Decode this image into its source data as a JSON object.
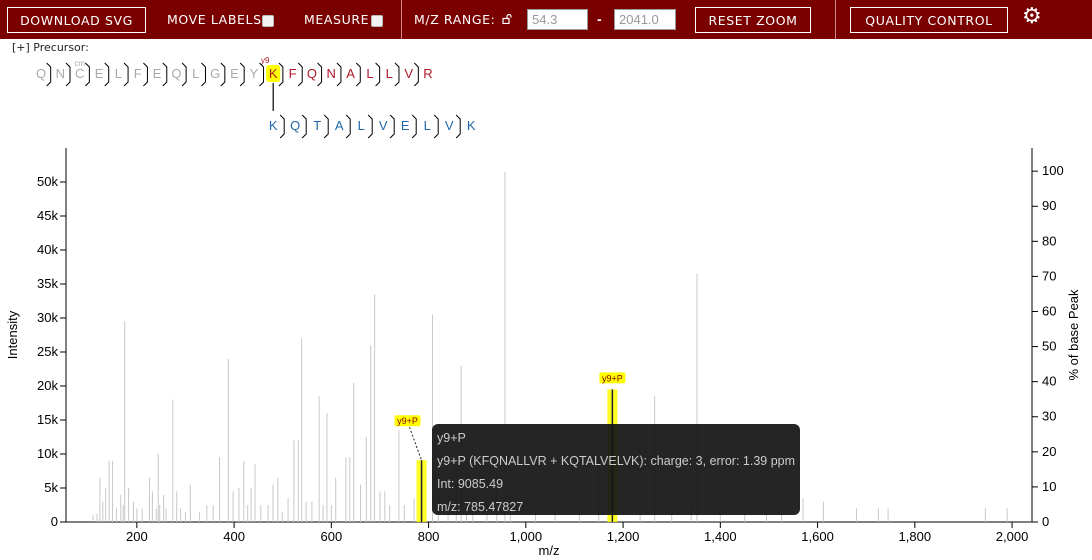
{
  "toolbar": {
    "download_label": "DOWNLOAD SVG",
    "move_labels_label": "MOVE LABELS",
    "measure_label": "MEASURE",
    "mz_range_label": "M/Z RANGE:",
    "mz_min": "54.3",
    "mz_max": "2041.0",
    "range_dash": "-",
    "reset_zoom_label": "RESET ZOOM",
    "quality_control_label": "QUALITY CONTROL",
    "settings_icon": "gear-icon"
  },
  "precursor_label": "[+] Precursor:",
  "peptide": {
    "alpha": [
      "Q",
      "N",
      "C",
      "E",
      "L",
      "F",
      "E",
      "Q",
      "L",
      "G",
      "E",
      "Y",
      "K",
      "F",
      "Q",
      "N",
      "A",
      "L",
      "L",
      "V",
      "R"
    ],
    "alpha_crosslink_index": 12,
    "alpha_colored_from": 12,
    "beta": [
      "K",
      "Q",
      "T",
      "A",
      "L",
      "V",
      "E",
      "L",
      "V",
      "K"
    ],
    "modification_label": "cm",
    "fragment_label": "y9",
    "colors": {
      "alpha": "#b0192a",
      "beta": "#2167a8",
      "grey": "#aaaaaa",
      "highlight": "#ffff00"
    }
  },
  "chart_data": {
    "type": "bar",
    "xlabel": "m/z",
    "ylabel": "Intensity",
    "y2label": "% of base Peak",
    "xlim": [
      54.3,
      2041.0
    ],
    "ylim": [
      0,
      55000
    ],
    "y2lim": [
      0,
      106.6
    ],
    "xticks": [
      200,
      400,
      600,
      800,
      1000,
      1200,
      1400,
      1600,
      1800,
      2000
    ],
    "xtick_labels": [
      "200",
      "400",
      "600",
      "800",
      "1,000",
      "1,200",
      "1,400",
      "1,600",
      "1,800",
      "2,000"
    ],
    "yticks": [
      0,
      5000,
      10000,
      15000,
      20000,
      25000,
      30000,
      35000,
      40000,
      45000,
      50000
    ],
    "ytick_labels": [
      "0",
      "5k",
      "10k",
      "15k",
      "20k",
      "25k",
      "30k",
      "35k",
      "40k",
      "45k",
      "50k"
    ],
    "y2ticks": [
      0,
      10,
      20,
      30,
      40,
      50,
      60,
      70,
      80,
      90,
      100
    ],
    "y2tick_labels": [
      "0",
      "10",
      "20",
      "30",
      "40",
      "50",
      "60",
      "70",
      "80",
      "90",
      "100"
    ],
    "peaks": [
      {
        "mz": 110,
        "i": 1000
      },
      {
        "mz": 118,
        "i": 1200
      },
      {
        "mz": 124,
        "i": 6500
      },
      {
        "mz": 130,
        "i": 3000
      },
      {
        "mz": 136,
        "i": 5000
      },
      {
        "mz": 143,
        "i": 9000
      },
      {
        "mz": 150,
        "i": 9000
      },
      {
        "mz": 158,
        "i": 2000
      },
      {
        "mz": 167,
        "i": 4000
      },
      {
        "mz": 172,
        "i": 2500
      },
      {
        "mz": 175,
        "i": 29500
      },
      {
        "mz": 183,
        "i": 5000
      },
      {
        "mz": 193,
        "i": 3000
      },
      {
        "mz": 200,
        "i": 2000
      },
      {
        "mz": 211,
        "i": 2000
      },
      {
        "mz": 226,
        "i": 6500
      },
      {
        "mz": 232,
        "i": 4500
      },
      {
        "mz": 240,
        "i": 2000
      },
      {
        "mz": 244,
        "i": 10000
      },
      {
        "mz": 247,
        "i": 2500
      },
      {
        "mz": 255,
        "i": 4000
      },
      {
        "mz": 260,
        "i": 2000
      },
      {
        "mz": 274,
        "i": 18000
      },
      {
        "mz": 282,
        "i": 4500
      },
      {
        "mz": 290,
        "i": 2000
      },
      {
        "mz": 300,
        "i": 1500
      },
      {
        "mz": 310,
        "i": 5500
      },
      {
        "mz": 329,
        "i": 1500
      },
      {
        "mz": 344,
        "i": 2500
      },
      {
        "mz": 357,
        "i": 2500
      },
      {
        "mz": 370,
        "i": 9500
      },
      {
        "mz": 388,
        "i": 24000
      },
      {
        "mz": 398,
        "i": 4500
      },
      {
        "mz": 410,
        "i": 5000
      },
      {
        "mz": 420,
        "i": 9000
      },
      {
        "mz": 428,
        "i": 2500
      },
      {
        "mz": 435,
        "i": 5000
      },
      {
        "mz": 443,
        "i": 8500
      },
      {
        "mz": 455,
        "i": 2500
      },
      {
        "mz": 470,
        "i": 2500
      },
      {
        "mz": 480,
        "i": 5500
      },
      {
        "mz": 490,
        "i": 6500
      },
      {
        "mz": 499,
        "i": 1500
      },
      {
        "mz": 511,
        "i": 3500
      },
      {
        "mz": 523,
        "i": 12000
      },
      {
        "mz": 532,
        "i": 12000
      },
      {
        "mz": 539,
        "i": 27000
      },
      {
        "mz": 548,
        "i": 3000
      },
      {
        "mz": 560,
        "i": 3000
      },
      {
        "mz": 575,
        "i": 18500
      },
      {
        "mz": 583,
        "i": 2500
      },
      {
        "mz": 591,
        "i": 16000
      },
      {
        "mz": 600,
        "i": 2500
      },
      {
        "mz": 609,
        "i": 6500
      },
      {
        "mz": 630,
        "i": 9500
      },
      {
        "mz": 638,
        "i": 9500
      },
      {
        "mz": 646,
        "i": 20500
      },
      {
        "mz": 660,
        "i": 5500
      },
      {
        "mz": 672,
        "i": 12500
      },
      {
        "mz": 681,
        "i": 26000
      },
      {
        "mz": 689,
        "i": 33500
      },
      {
        "mz": 700,
        "i": 4500
      },
      {
        "mz": 710,
        "i": 4500
      },
      {
        "mz": 720,
        "i": 2500
      },
      {
        "mz": 739,
        "i": 13500
      },
      {
        "mz": 750,
        "i": 2500
      },
      {
        "mz": 770,
        "i": 3500
      },
      {
        "mz": 785.5,
        "i": 9085.49,
        "annotated": true,
        "label": "y9+P"
      },
      {
        "mz": 808,
        "i": 30500
      },
      {
        "mz": 820,
        "i": 4000
      },
      {
        "mz": 840,
        "i": 4500
      },
      {
        "mz": 857,
        "i": 9500
      },
      {
        "mz": 867,
        "i": 23000
      },
      {
        "mz": 878,
        "i": 11500
      },
      {
        "mz": 891,
        "i": 4500
      },
      {
        "mz": 920,
        "i": 3500
      },
      {
        "mz": 940,
        "i": 7000
      },
      {
        "mz": 957,
        "i": 51500
      },
      {
        "mz": 968,
        "i": 4500
      },
      {
        "mz": 1020,
        "i": 2500
      },
      {
        "mz": 1060,
        "i": 3500
      },
      {
        "mz": 1110,
        "i": 2500
      },
      {
        "mz": 1150,
        "i": 9500
      },
      {
        "mz": 1178,
        "i": 19500,
        "annotated": true,
        "label": "y9+P"
      },
      {
        "mz": 1235,
        "i": 12500
      },
      {
        "mz": 1265,
        "i": 18500
      },
      {
        "mz": 1300,
        "i": 2500
      },
      {
        "mz": 1340,
        "i": 3000
      },
      {
        "mz": 1352,
        "i": 36500
      },
      {
        "mz": 1400,
        "i": 2500
      },
      {
        "mz": 1450,
        "i": 2000
      },
      {
        "mz": 1495,
        "i": 2500
      },
      {
        "mz": 1526,
        "i": 3000
      },
      {
        "mz": 1570,
        "i": 3500
      },
      {
        "mz": 1612,
        "i": 3000
      },
      {
        "mz": 1680,
        "i": 2000
      },
      {
        "mz": 1725,
        "i": 2000
      },
      {
        "mz": 1745,
        "i": 2000
      },
      {
        "mz": 1945,
        "i": 2000
      },
      {
        "mz": 1990,
        "i": 2000
      }
    ]
  },
  "tooltip": {
    "line1": "y9+P",
    "line2": "y9+P (KFQNALLVR + KQTALVELVK): charge: 3, error: 1.39 ppm",
    "line3": "Int: 9085.49",
    "line4": "m/z: 785.47827"
  }
}
